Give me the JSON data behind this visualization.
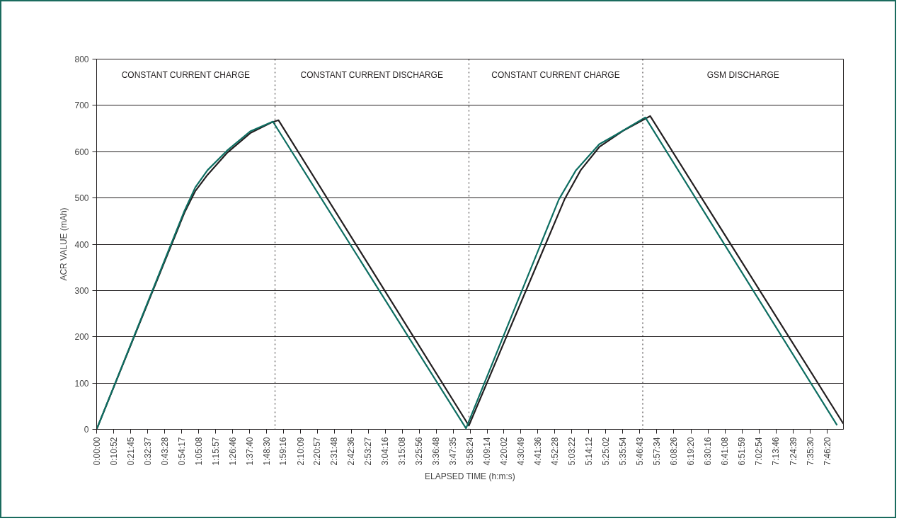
{
  "chart_data": {
    "type": "line",
    "xlabel": "ELAPSED TIME (h:m:s)",
    "ylabel": "ACR VALUE (mAh)",
    "xlim": [
      0,
      7.945
    ],
    "ylim": [
      0,
      800
    ],
    "yticks": [
      0,
      100,
      200,
      300,
      400,
      500,
      600,
      700,
      800
    ],
    "xticks": [
      {
        "value": 0,
        "label": "0:00:00"
      },
      {
        "value": 0.1811,
        "label": "0:10:52"
      },
      {
        "value": 0.3625,
        "label": "0:21:45"
      },
      {
        "value": 0.5436,
        "label": "0:32:37"
      },
      {
        "value": 0.7244,
        "label": "0:43:28"
      },
      {
        "value": 0.9047,
        "label": "0:54:17"
      },
      {
        "value": 1.0856,
        "label": "1:05:08"
      },
      {
        "value": 1.2658,
        "label": "1:15:57"
      },
      {
        "value": 1.4461,
        "label": "1:26:46"
      },
      {
        "value": 1.6278,
        "label": "1:37:40"
      },
      {
        "value": 1.8083,
        "label": "1:48:30"
      },
      {
        "value": 1.9878,
        "label": "1:59:16"
      },
      {
        "value": 2.1692,
        "label": "2:10:09"
      },
      {
        "value": 2.3492,
        "label": "2:20:57"
      },
      {
        "value": 2.53,
        "label": "2:31:48"
      },
      {
        "value": 2.71,
        "label": "2:42:36"
      },
      {
        "value": 2.8908,
        "label": "2:53:27"
      },
      {
        "value": 3.0711,
        "label": "3:04:16"
      },
      {
        "value": 3.2522,
        "label": "3:15:08"
      },
      {
        "value": 3.4322,
        "label": "3:25:56"
      },
      {
        "value": 3.6133,
        "label": "3:36:48"
      },
      {
        "value": 3.7931,
        "label": "3:47:35"
      },
      {
        "value": 3.9733,
        "label": "3:58:24"
      },
      {
        "value": 4.1539,
        "label": "4:09:14"
      },
      {
        "value": 4.3339,
        "label": "4:20:02"
      },
      {
        "value": 4.5136,
        "label": "4:30:49"
      },
      {
        "value": 4.6933,
        "label": "4:41:36"
      },
      {
        "value": 4.8744,
        "label": "4:52:28"
      },
      {
        "value": 5.0561,
        "label": "5:03:22"
      },
      {
        "value": 5.2367,
        "label": "5:14:12"
      },
      {
        "value": 5.4172,
        "label": "5:25:02"
      },
      {
        "value": 5.5983,
        "label": "5:35:54"
      },
      {
        "value": 5.7786,
        "label": "5:46:43"
      },
      {
        "value": 5.9594,
        "label": "5:57:34"
      },
      {
        "value": 6.1406,
        "label": "6:08:26"
      },
      {
        "value": 6.3222,
        "label": "6:19:20"
      },
      {
        "value": 6.5044,
        "label": "6:30:16"
      },
      {
        "value": 6.6856,
        "label": "6:41:08"
      },
      {
        "value": 6.8664,
        "label": "6:51:59"
      },
      {
        "value": 7.0483,
        "label": "7:02:54"
      },
      {
        "value": 7.2294,
        "label": "7:13:46"
      },
      {
        "value": 7.4108,
        "label": "7:24:39"
      },
      {
        "value": 7.5917,
        "label": "7:35:30"
      },
      {
        "value": 7.7722,
        "label": "7:46:20"
      }
    ],
    "grid": "y",
    "marker": "none",
    "line_style": "solid",
    "series": [
      {
        "color": "#231f20",
        "x": [
          0,
          0.934,
          1.05,
          1.18,
          1.386,
          1.634,
          1.86,
          1.935,
          3.96,
          4.978,
          5.15,
          5.347,
          5.6,
          5.889,
          7.945
        ],
        "values": [
          0,
          468,
          515,
          550,
          597,
          640,
          663,
          668,
          8,
          497,
          560,
          610,
          645,
          677,
          12
        ]
      },
      {
        "color": "#0e6e62",
        "x": [
          0,
          0.934,
          1.05,
          1.18,
          1.386,
          1.634,
          1.875,
          3.93,
          4.918,
          5.1,
          5.347,
          5.52,
          5.837,
          7.877
        ],
        "values": [
          0,
          472,
          523,
          560,
          602,
          644,
          665,
          2,
          497,
          560,
          616,
          636,
          674,
          9
        ]
      }
    ],
    "ref_lines": [
      {
        "axis": "x",
        "value": 1.898,
        "line_style": "dotted",
        "color": "#231f20"
      },
      {
        "axis": "x",
        "value": 3.961,
        "line_style": "dotted",
        "color": "#231f20"
      },
      {
        "axis": "x",
        "value": 5.81,
        "line_style": "dotted",
        "color": "#231f20"
      }
    ],
    "annotations": [
      "CONSTANT CURRENT CHARGE",
      "CONSTANT CURRENT DISCHARGE",
      "CONSTANT CURRENT CHARGE",
      "GSM DISCHARGE"
    ]
  }
}
